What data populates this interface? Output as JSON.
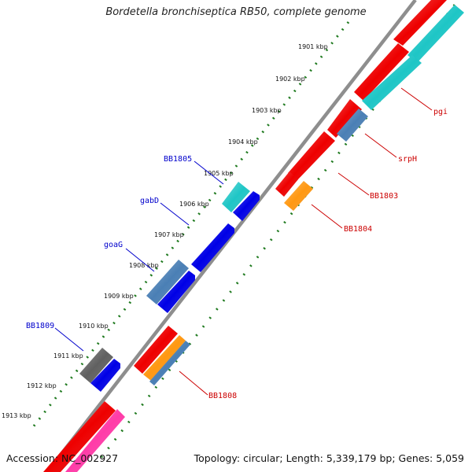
{
  "title": "Bordetella bronchiseptica RB50, complete genome",
  "footer": {
    "accession": "Accession: NC_002927",
    "summary": "Topology: circular; Length: 5,339,179 bp; Genes: 5,059"
  },
  "colors": {
    "backbone": "#8e8e8e",
    "gc_dots": "#1f7a1f",
    "label_forward": "#0000cc",
    "label_reverse": "#cc0000"
  },
  "ticks": [
    "1901 kbp",
    "1902 kbp",
    "1903 kbp",
    "1904 kbp",
    "1905 kbp",
    "1906 kbp",
    "1907 kbp",
    "1908 kbp",
    "1909 kbp",
    "1910 kbp",
    "1911 kbp",
    "1912 kbp",
    "1913 kbp"
  ],
  "gene_labels": {
    "forward": [
      "BB1805",
      "gabD",
      "goaG",
      "BB1809"
    ],
    "reverse": [
      "pgi",
      "srpH",
      "BB1803",
      "BB1804",
      "BB1808"
    ]
  }
}
